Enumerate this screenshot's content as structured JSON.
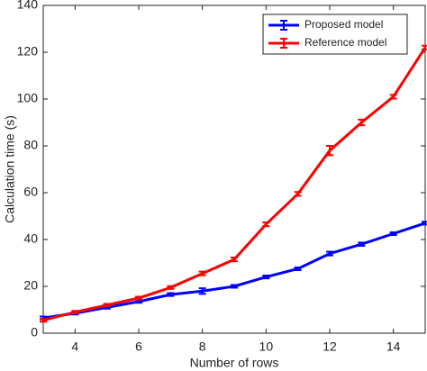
{
  "chart_data": {
    "type": "line",
    "xlabel": "Number of rows",
    "ylabel": "Calculation time (s)",
    "x": [
      3,
      4,
      5,
      6,
      7,
      8,
      9,
      10,
      11,
      12,
      13,
      14,
      15
    ],
    "series": [
      {
        "name": "Proposed model",
        "color": "#0000ff",
        "values": [
          6.5,
          8.5,
          11,
          13.5,
          16.5,
          18,
          20,
          24,
          27.5,
          34,
          38,
          42.5,
          47
        ],
        "errors": [
          0.6,
          0.5,
          0.5,
          0.5,
          0.6,
          1.2,
          0.6,
          0.6,
          0.6,
          0.8,
          0.7,
          0.6,
          0.6
        ]
      },
      {
        "name": "Reference model",
        "color": "#ff0000",
        "values": [
          5.5,
          9,
          12,
          15,
          19.5,
          25.5,
          31.5,
          46.5,
          59.5,
          78,
          90,
          101,
          122
        ],
        "errors": [
          0.6,
          0.5,
          0.5,
          0.6,
          0.6,
          0.8,
          0.8,
          0.8,
          0.8,
          2,
          1.2,
          0.8,
          0.8
        ]
      }
    ],
    "xlim": [
      3,
      15
    ],
    "xticks": [
      4,
      6,
      8,
      10,
      12,
      14
    ],
    "ylim": [
      0,
      140
    ],
    "yticks": [
      0,
      20,
      40,
      60,
      80,
      100,
      120,
      140
    ],
    "grid": false,
    "legend": "upper right"
  }
}
